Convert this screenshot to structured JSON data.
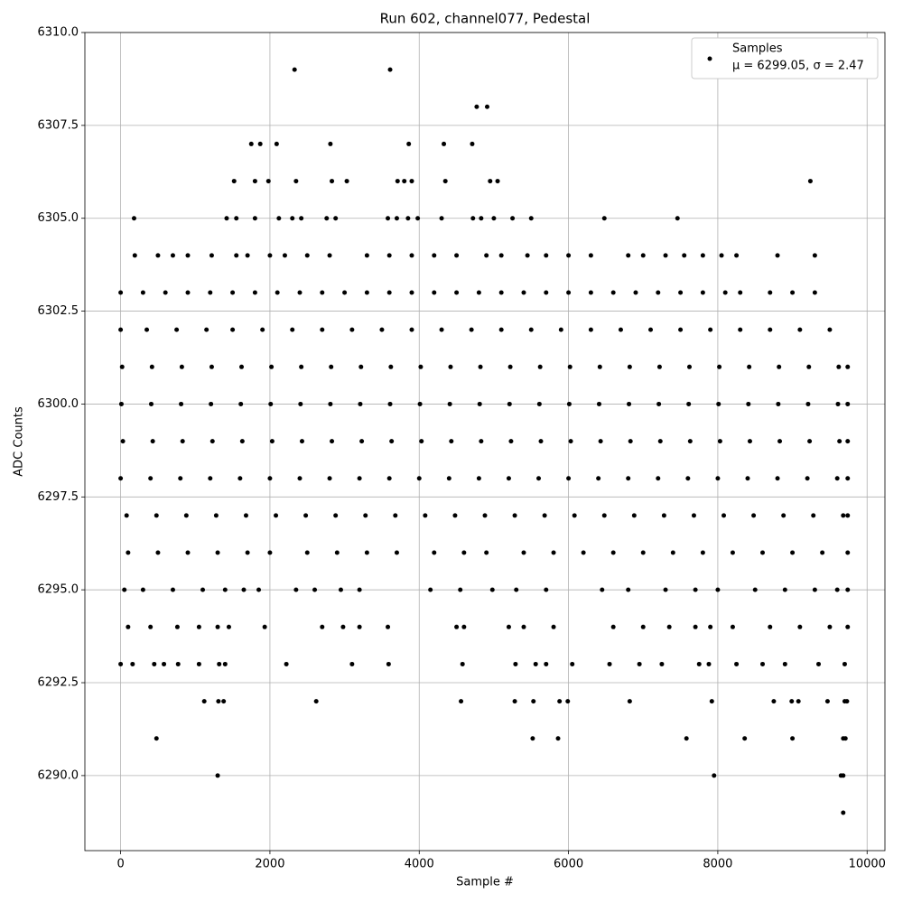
{
  "chart_data": {
    "type": "scatter",
    "title": "Run 602, channel077, Pedestal",
    "x_label": "Sample #",
    "y_label": "ADC Counts",
    "legend_note": "μ = 6299.05, σ = 2.47",
    "legend_position": "upper right",
    "grid": true,
    "xlim": [
      -479,
      10239
    ],
    "ylim": [
      6287.98,
      6310
    ],
    "xticks": [
      0,
      2000,
      4000,
      6000,
      8000,
      10000
    ],
    "yticks": [
      {
        "value": 6290,
        "label": "6290.0"
      },
      6292.5,
      {
        "value": 6295,
        "label": "6295.0"
      },
      6297.5,
      {
        "value": 6300,
        "label": "6300.0"
      },
      6302.5,
      {
        "value": 6305,
        "label": "6305.0"
      },
      6307.5,
      {
        "value": 6310,
        "label": "6310.0"
      }
    ],
    "x": [
      2330,
      3610,
      4770,
      4910,
      1750,
      1870,
      2090,
      2810,
      3860,
      4330,
      4710,
      1520,
      1800,
      1980,
      2350,
      2830,
      3030,
      3710,
      3800,
      3900,
      4350,
      4950,
      5050,
      9240,
      180,
      1420,
      1550,
      1800,
      2120,
      2300,
      2420,
      2760,
      2880,
      3580,
      3700,
      3850,
      3980,
      4300,
      4720,
      4830,
      5000,
      5250,
      5500,
      6480,
      7460,
      190,
      500,
      700,
      900,
      1220,
      1550,
      1700,
      2000,
      2200,
      2500,
      2800,
      3300,
      3600,
      3900,
      4200,
      4500,
      4900,
      5100,
      5450,
      5700,
      6000,
      6300,
      6800,
      7000,
      7300,
      7550,
      7800,
      8050,
      8250,
      8800,
      9300,
      0,
      300,
      600,
      900,
      1200,
      1500,
      1800,
      2100,
      2400,
      2700,
      3000,
      3300,
      3600,
      3900,
      4200,
      4500,
      4800,
      5100,
      5400,
      5700,
      6000,
      6300,
      6600,
      6900,
      7200,
      7500,
      7800,
      8100,
      8300,
      8700,
      9000,
      9300,
      0,
      350,
      750,
      1150,
      1500,
      1900,
      2300,
      2700,
      3100,
      3500,
      3900,
      4300,
      4700,
      5100,
      5500,
      5900,
      6300,
      6700,
      7100,
      7500,
      7900,
      8300,
      8700,
      9100,
      9500,
      20,
      420,
      820,
      1220,
      1620,
      2020,
      2420,
      2820,
      3220,
      3620,
      4020,
      4420,
      4820,
      5220,
      5620,
      6020,
      6420,
      6820,
      7220,
      7620,
      8020,
      8420,
      8820,
      9220,
      9620,
      9740,
      10,
      410,
      810,
      1210,
      1610,
      2010,
      2410,
      2810,
      3210,
      3610,
      4010,
      4410,
      4810,
      5210,
      5610,
      6010,
      6410,
      6810,
      7210,
      7610,
      8010,
      8410,
      8810,
      9210,
      9610,
      9740,
      30,
      430,
      830,
      1230,
      1630,
      2030,
      2430,
      2830,
      3230,
      3630,
      4030,
      4430,
      4830,
      5230,
      5630,
      6030,
      6430,
      6830,
      7230,
      7630,
      8030,
      8430,
      8830,
      9230,
      9630,
      9740,
      0,
      400,
      800,
      1200,
      1600,
      2000,
      2400,
      2800,
      3200,
      3600,
      4000,
      4400,
      4800,
      5200,
      5600,
      6000,
      6400,
      6800,
      7200,
      7600,
      8000,
      8400,
      8800,
      9200,
      9600,
      9740,
      80,
      480,
      880,
      1280,
      1680,
      2080,
      2480,
      2880,
      3280,
      3680,
      4080,
      4480,
      4880,
      5280,
      5680,
      6080,
      6480,
      6880,
      7280,
      7680,
      8080,
      8480,
      8880,
      9280,
      9680,
      9740,
      100,
      500,
      900,
      1300,
      1700,
      2000,
      2500,
      2900,
      3300,
      3700,
      4200,
      4600,
      4900,
      5400,
      5800,
      6200,
      6600,
      7000,
      7400,
      7800,
      8200,
      8600,
      9000,
      9400,
      9740,
      50,
      300,
      700,
      1100,
      1400,
      1650,
      1850,
      2350,
      2600,
      2950,
      3200,
      4150,
      4550,
      4980,
      5300,
      5700,
      6450,
      6800,
      7300,
      7700,
      8000,
      8500,
      8900,
      9300,
      9600,
      9740,
      100,
      400,
      760,
      1050,
      1300,
      1450,
      1930,
      2700,
      2980,
      3200,
      3580,
      4500,
      4600,
      5200,
      5400,
      5800,
      6600,
      7000,
      7350,
      7700,
      7900,
      8200,
      8700,
      9100,
      9500,
      9740,
      0,
      160,
      450,
      580,
      770,
      1050,
      1320,
      1400,
      2220,
      3100,
      3590,
      4580,
      5290,
      5560,
      5700,
      6050,
      6550,
      6950,
      7250,
      7750,
      7880,
      8250,
      8600,
      8900,
      9350,
      9700,
      1120,
      1310,
      1380,
      2620,
      4560,
      5280,
      5530,
      5880,
      5990,
      6820,
      7920,
      8750,
      8990,
      9080,
      9470,
      9700,
      9730,
      480,
      5520,
      5860,
      7580,
      8360,
      9000,
      9680,
      9710,
      1300,
      7950,
      9650,
      9680,
      9680
    ],
    "series": [
      {
        "name": "Samples",
        "color": "#000000",
        "values": [
          6309,
          6309,
          6308,
          6308,
          6307,
          6307,
          6307,
          6307,
          6307,
          6307,
          6307,
          6306,
          6306,
          6306,
          6306,
          6306,
          6306,
          6306,
          6306,
          6306,
          6306,
          6306,
          6306,
          6306,
          6305,
          6305,
          6305,
          6305,
          6305,
          6305,
          6305,
          6305,
          6305,
          6305,
          6305,
          6305,
          6305,
          6305,
          6305,
          6305,
          6305,
          6305,
          6305,
          6305,
          6305,
          6304,
          6304,
          6304,
          6304,
          6304,
          6304,
          6304,
          6304,
          6304,
          6304,
          6304,
          6304,
          6304,
          6304,
          6304,
          6304,
          6304,
          6304,
          6304,
          6304,
          6304,
          6304,
          6304,
          6304,
          6304,
          6304,
          6304,
          6304,
          6304,
          6304,
          6304,
          6303,
          6303,
          6303,
          6303,
          6303,
          6303,
          6303,
          6303,
          6303,
          6303,
          6303,
          6303,
          6303,
          6303,
          6303,
          6303,
          6303,
          6303,
          6303,
          6303,
          6303,
          6303,
          6303,
          6303,
          6303,
          6303,
          6303,
          6303,
          6303,
          6303,
          6303,
          6303,
          6302,
          6302,
          6302,
          6302,
          6302,
          6302,
          6302,
          6302,
          6302,
          6302,
          6302,
          6302,
          6302,
          6302,
          6302,
          6302,
          6302,
          6302,
          6302,
          6302,
          6302,
          6302,
          6302,
          6302,
          6302,
          6301,
          6301,
          6301,
          6301,
          6301,
          6301,
          6301,
          6301,
          6301,
          6301,
          6301,
          6301,
          6301,
          6301,
          6301,
          6301,
          6301,
          6301,
          6301,
          6301,
          6301,
          6301,
          6301,
          6301,
          6301,
          6301,
          6300,
          6300,
          6300,
          6300,
          6300,
          6300,
          6300,
          6300,
          6300,
          6300,
          6300,
          6300,
          6300,
          6300,
          6300,
          6300,
          6300,
          6300,
          6300,
          6300,
          6300,
          6300,
          6300,
          6300,
          6300,
          6300,
          6299,
          6299,
          6299,
          6299,
          6299,
          6299,
          6299,
          6299,
          6299,
          6299,
          6299,
          6299,
          6299,
          6299,
          6299,
          6299,
          6299,
          6299,
          6299,
          6299,
          6299,
          6299,
          6299,
          6299,
          6299,
          6299,
          6298,
          6298,
          6298,
          6298,
          6298,
          6298,
          6298,
          6298,
          6298,
          6298,
          6298,
          6298,
          6298,
          6298,
          6298,
          6298,
          6298,
          6298,
          6298,
          6298,
          6298,
          6298,
          6298,
          6298,
          6298,
          6298,
          6297,
          6297,
          6297,
          6297,
          6297,
          6297,
          6297,
          6297,
          6297,
          6297,
          6297,
          6297,
          6297,
          6297,
          6297,
          6297,
          6297,
          6297,
          6297,
          6297,
          6297,
          6297,
          6297,
          6297,
          6297,
          6297,
          6296,
          6296,
          6296,
          6296,
          6296,
          6296,
          6296,
          6296,
          6296,
          6296,
          6296,
          6296,
          6296,
          6296,
          6296,
          6296,
          6296,
          6296,
          6296,
          6296,
          6296,
          6296,
          6296,
          6296,
          6296,
          6295,
          6295,
          6295,
          6295,
          6295,
          6295,
          6295,
          6295,
          6295,
          6295,
          6295,
          6295,
          6295,
          6295,
          6295,
          6295,
          6295,
          6295,
          6295,
          6295,
          6295,
          6295,
          6295,
          6295,
          6295,
          6295,
          6294,
          6294,
          6294,
          6294,
          6294,
          6294,
          6294,
          6294,
          6294,
          6294,
          6294,
          6294,
          6294,
          6294,
          6294,
          6294,
          6294,
          6294,
          6294,
          6294,
          6294,
          6294,
          6294,
          6294,
          6294,
          6294,
          6293,
          6293,
          6293,
          6293,
          6293,
          6293,
          6293,
          6293,
          6293,
          6293,
          6293,
          6293,
          6293,
          6293,
          6293,
          6293,
          6293,
          6293,
          6293,
          6293,
          6293,
          6293,
          6293,
          6293,
          6293,
          6293,
          6292,
          6292,
          6292,
          6292,
          6292,
          6292,
          6292,
          6292,
          6292,
          6292,
          6292,
          6292,
          6292,
          6292,
          6292,
          6292,
          6292,
          6291,
          6291,
          6291,
          6291,
          6291,
          6291,
          6291,
          6291,
          6290,
          6290,
          6290,
          6290,
          6289
        ]
      }
    ]
  }
}
